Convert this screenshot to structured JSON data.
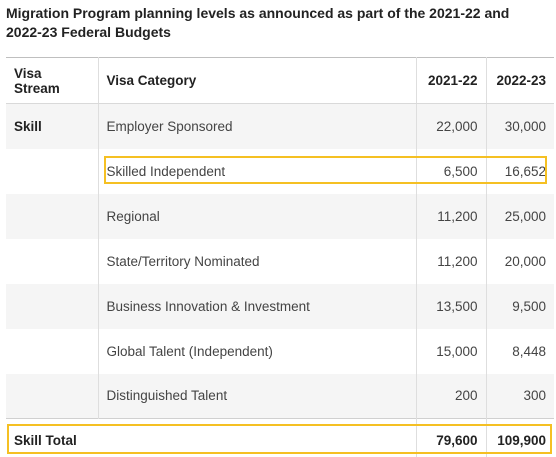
{
  "caption": "Migration Program planning levels as announced as part of the 2021-22 and 2022-23 Federal Budgets",
  "headers": [
    "Visa Stream",
    "Visa Category",
    "2021-22",
    "2022-23"
  ],
  "rows": [
    {
      "stream": "Skill",
      "category": "Employer Sponsored",
      "y2122": "22,000",
      "y2223": "30,000"
    },
    {
      "stream": "",
      "category": "Skilled Independent",
      "y2122": "6,500",
      "y2223": "16,652"
    },
    {
      "stream": "",
      "category": "Regional",
      "y2122": "11,200",
      "y2223": "25,000"
    },
    {
      "stream": "",
      "category": "State/Territory Nominated",
      "y2122": "11,200",
      "y2223": "20,000"
    },
    {
      "stream": "",
      "category": "Business Innovation & Investment",
      "y2122": "13,500",
      "y2223": "9,500"
    },
    {
      "stream": "",
      "category": "Global Talent (Independent)",
      "y2122": "15,000",
      "y2223": "8,448"
    },
    {
      "stream": "",
      "category": "Distinguished Talent",
      "y2122": "200",
      "y2223": "300"
    }
  ],
  "total": {
    "label": "Skill Total",
    "y2122": "79,600",
    "y2223": "109,900"
  },
  "highlight_color": "#f5c023"
}
